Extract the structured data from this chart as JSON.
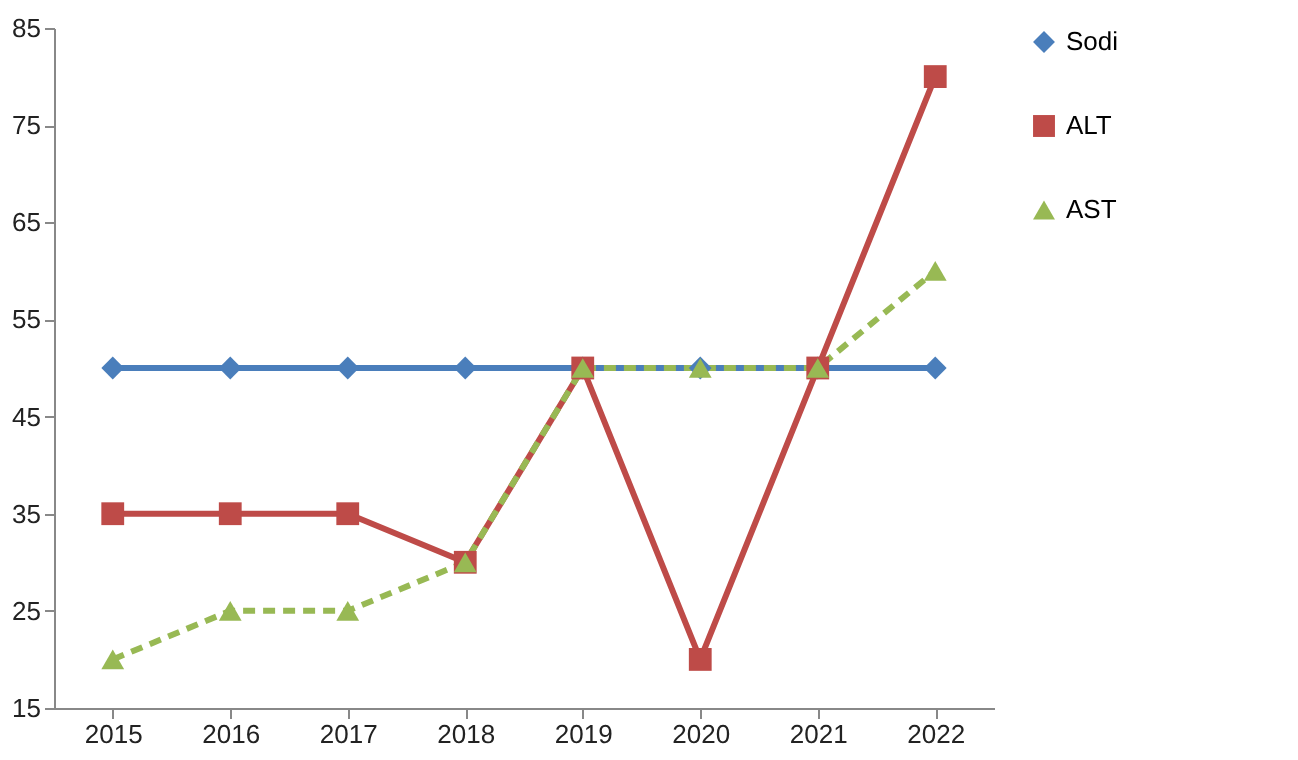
{
  "chart_data": {
    "type": "line",
    "categories": [
      "2015",
      "2016",
      "2017",
      "2018",
      "2019",
      "2020",
      "2021",
      "2022"
    ],
    "series": [
      {
        "name": "Sodi",
        "color": "#4a7ebb",
        "marker": "diamond",
        "line_style": "solid",
        "values": [
          50,
          50,
          50,
          50,
          50,
          50,
          50,
          50
        ]
      },
      {
        "name": "ALT",
        "color": "#be4b48",
        "marker": "square",
        "line_style": "solid",
        "values": [
          35,
          35,
          35,
          30,
          50,
          20,
          50,
          80
        ]
      },
      {
        "name": "AST",
        "color": "#98b954",
        "marker": "triangle",
        "line_style": "dashed",
        "values": [
          20,
          25,
          25,
          30,
          50,
          50,
          50,
          60
        ]
      }
    ],
    "ylim": [
      15,
      85
    ],
    "yticks": [
      15,
      25,
      35,
      45,
      55,
      65,
      75,
      85
    ],
    "grid": false,
    "legend": "right"
  }
}
